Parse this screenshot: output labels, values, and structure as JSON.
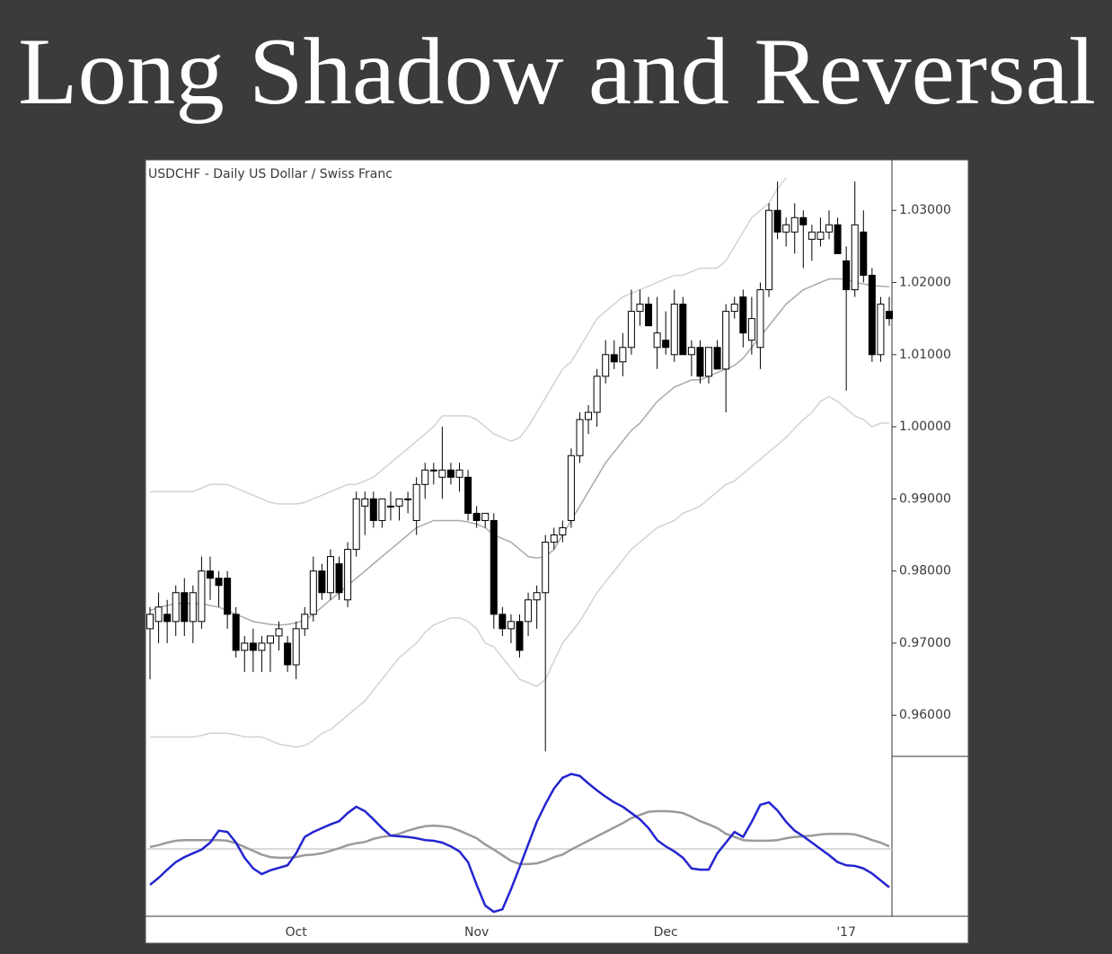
{
  "chart_data": [
    {
      "type": "candlestick",
      "title": "Long Shadow and Reversal",
      "subtitle": "USDCHF - Daily  US Dollar / Swiss Franc",
      "categories": [
        null,
        null,
        null,
        null,
        null,
        null,
        null,
        null,
        null,
        null,
        null,
        null,
        null,
        null,
        null,
        null,
        null,
        "Oct",
        null,
        null,
        null,
        null,
        null,
        null,
        null,
        null,
        null,
        null,
        null,
        null,
        null,
        null,
        null,
        null,
        null,
        null,
        null,
        null,
        "Nov",
        null,
        null,
        null,
        null,
        null,
        null,
        null,
        null,
        null,
        null,
        null,
        null,
        null,
        null,
        null,
        null,
        null,
        null,
        null,
        null,
        null,
        "Dec",
        null,
        null,
        null,
        null,
        null,
        null,
        null,
        null,
        null,
        null,
        null,
        null,
        null,
        null,
        null,
        null,
        null,
        null,
        null,
        null,
        "'17",
        null,
        null,
        null,
        null,
        null
      ],
      "open": [
        0.972,
        0.973,
        0.974,
        0.973,
        0.977,
        0.973,
        0.973,
        0.98,
        0.979,
        0.979,
        0.974,
        0.969,
        0.97,
        0.969,
        0.97,
        0.971,
        0.97,
        0.967,
        0.972,
        0.974,
        0.98,
        0.977,
        0.981,
        0.976,
        0.983,
        0.989,
        0.99,
        0.987,
        0.989,
        0.989,
        0.99,
        0.987,
        0.992,
        0.994,
        0.993,
        0.994,
        0.993,
        0.993,
        0.988,
        0.987,
        0.987,
        0.974,
        0.972,
        0.973,
        0.973,
        0.976,
        0.977,
        0.984,
        0.985,
        0.987,
        0.996,
        1.001,
        1.002,
        1.007,
        1.01,
        1.009,
        1.011,
        1.016,
        1.017,
        1.011,
        1.012,
        1.01,
        1.017,
        1.01,
        1.011,
        1.007,
        1.011,
        1.008,
        1.016,
        1.018,
        1.012,
        1.011,
        1.019,
        1.03,
        1.027,
        1.027,
        1.029,
        1.026,
        1.026,
        1.027,
        1.028,
        1.023,
        1.019,
        1.027,
        1.021,
        1.01,
        1.016
      ],
      "high": [
        0.975,
        0.977,
        0.976,
        0.978,
        0.979,
        0.978,
        0.982,
        0.982,
        0.98,
        0.98,
        0.975,
        0.971,
        0.972,
        0.971,
        0.971,
        0.973,
        0.971,
        0.973,
        0.975,
        0.982,
        0.981,
        0.983,
        0.982,
        0.984,
        0.991,
        0.991,
        0.991,
        0.99,
        0.991,
        0.99,
        0.991,
        0.993,
        0.995,
        0.995,
        1.0,
        0.995,
        0.995,
        0.994,
        0.989,
        0.988,
        0.988,
        0.975,
        0.974,
        0.974,
        0.977,
        0.978,
        0.985,
        0.986,
        0.987,
        0.997,
        1.002,
        1.003,
        1.008,
        1.012,
        1.012,
        1.013,
        1.019,
        1.019,
        1.018,
        1.018,
        1.016,
        1.019,
        1.018,
        1.012,
        1.012,
        1.011,
        1.012,
        1.017,
        1.018,
        1.019,
        1.018,
        1.02,
        1.031,
        1.034,
        1.029,
        1.031,
        1.03,
        1.028,
        1.029,
        1.03,
        1.029,
        1.025,
        1.034,
        1.03,
        1.022,
        1.018,
        1.018
      ],
      "low": [
        0.965,
        0.97,
        0.97,
        0.971,
        0.971,
        0.97,
        0.972,
        0.976,
        0.975,
        0.972,
        0.968,
        0.966,
        0.966,
        0.966,
        0.966,
        0.969,
        0.966,
        0.965,
        0.971,
        0.973,
        0.976,
        0.976,
        0.976,
        0.975,
        0.982,
        0.985,
        0.986,
        0.986,
        0.987,
        0.987,
        0.988,
        0.985,
        0.99,
        0.992,
        0.99,
        0.992,
        0.991,
        0.987,
        0.986,
        0.986,
        0.972,
        0.971,
        0.97,
        0.968,
        0.971,
        0.972,
        0.955,
        0.983,
        0.984,
        0.986,
        0.995,
        0.999,
        1.0,
        1.006,
        1.008,
        1.007,
        1.01,
        1.014,
        1.014,
        1.008,
        1.01,
        1.009,
        1.01,
        1.007,
        1.006,
        1.006,
        1.008,
        1.002,
        1.015,
        1.011,
        1.01,
        1.008,
        1.018,
        1.026,
        1.025,
        1.024,
        1.022,
        1.023,
        1.025,
        1.026,
        1.024,
        1.005,
        1.018,
        1.02,
        1.009,
        1.009,
        1.014
      ],
      "close": [
        0.974,
        0.975,
        0.973,
        0.977,
        0.973,
        0.977,
        0.98,
        0.979,
        0.978,
        0.974,
        0.969,
        0.97,
        0.969,
        0.97,
        0.971,
        0.972,
        0.967,
        0.972,
        0.974,
        0.98,
        0.977,
        0.982,
        0.977,
        0.983,
        0.99,
        0.99,
        0.987,
        0.99,
        0.989,
        0.99,
        0.99,
        0.992,
        0.994,
        0.994,
        0.994,
        0.993,
        0.994,
        0.988,
        0.987,
        0.988,
        0.974,
        0.972,
        0.973,
        0.969,
        0.976,
        0.977,
        0.984,
        0.985,
        0.986,
        0.996,
        1.001,
        1.002,
        1.007,
        1.01,
        1.009,
        1.011,
        1.016,
        1.017,
        1.014,
        1.013,
        1.011,
        1.017,
        1.01,
        1.011,
        1.007,
        1.011,
        1.008,
        1.016,
        1.017,
        1.013,
        1.015,
        1.019,
        1.03,
        1.027,
        1.028,
        1.029,
        1.028,
        1.027,
        1.027,
        1.028,
        1.024,
        1.019,
        1.028,
        1.021,
        1.01,
        1.017,
        1.015
      ],
      "up_color": "#ffffff",
      "down_color": "#000000",
      "overlays": [
        {
          "color": "#a9a9a9",
          "values": [
            0.9745,
            0.975,
            0.9752,
            0.9755,
            0.9755,
            0.9755,
            0.9755,
            0.9752,
            0.975,
            0.9745,
            0.974,
            0.9735,
            0.973,
            0.9728,
            0.9726,
            0.9725,
            0.9726,
            0.9728,
            0.9732,
            0.974,
            0.975,
            0.976,
            0.977,
            0.978,
            0.979,
            0.98,
            0.981,
            0.982,
            0.983,
            0.984,
            0.985,
            0.986,
            0.9865,
            0.987,
            0.987,
            0.987,
            0.987,
            0.9868,
            0.9865,
            0.986,
            0.985,
            0.9845,
            0.984,
            0.983,
            0.982,
            0.9818,
            0.982,
            0.983,
            0.985,
            0.987,
            0.989,
            0.991,
            0.993,
            0.995,
            0.9965,
            0.998,
            0.9995,
            1.0005,
            1.002,
            1.0035,
            1.0045,
            1.0055,
            1.006,
            1.0065,
            1.0065,
            1.007,
            1.0075,
            1.008,
            1.0085,
            1.0095,
            1.011,
            1.0125,
            1.014,
            1.0155,
            1.017,
            1.018,
            1.019,
            1.0195,
            1.02,
            1.0205,
            1.0205,
            1.0205,
            1.02,
            1.0198,
            1.0196,
            1.0195,
            1.0194
          ]
        },
        {
          "color": "#d2d2d2",
          "values": [
            0.991,
            0.991,
            0.991,
            0.991,
            0.991,
            0.991,
            0.9915,
            0.992,
            0.992,
            0.992,
            0.9915,
            0.991,
            0.9905,
            0.99,
            0.9895,
            0.9893,
            0.9893,
            0.9893,
            0.9895,
            0.99,
            0.9905,
            0.991,
            0.9915,
            0.992,
            0.992,
            0.9925,
            0.993,
            0.994,
            0.995,
            0.996,
            0.997,
            0.998,
            0.999,
            1.0,
            1.0015,
            1.0015,
            1.0015,
            1.0015,
            1.001,
            1.0,
            0.999,
            0.9985,
            0.998,
            0.9985,
            1.0,
            1.002,
            1.004,
            1.006,
            1.008,
            1.009,
            1.011,
            1.013,
            1.015,
            1.016,
            1.017,
            1.018,
            1.0185,
            1.019,
            1.0195,
            1.02,
            1.0205,
            1.021,
            1.021,
            1.0215,
            1.022,
            1.022,
            1.022,
            1.023,
            1.025,
            1.027,
            1.029,
            1.03,
            1.031,
            1.033,
            1.0345,
            null,
            null,
            null,
            null,
            null,
            null,
            null,
            null,
            null,
            null,
            null,
            null
          ]
        },
        {
          "color": "#d2d2d2",
          "values": [
            0.957,
            0.957,
            0.957,
            0.957,
            0.957,
            0.957,
            0.9572,
            0.9575,
            0.9575,
            0.9575,
            0.9573,
            0.957,
            0.957,
            0.957,
            0.9565,
            0.956,
            0.9558,
            0.9556,
            0.9558,
            0.9565,
            0.9575,
            0.958,
            0.959,
            0.96,
            0.961,
            0.962,
            0.9635,
            0.965,
            0.9665,
            0.968,
            0.969,
            0.97,
            0.9715,
            0.9725,
            0.973,
            0.9735,
            0.9735,
            0.973,
            0.972,
            0.97,
            0.9695,
            0.968,
            0.9665,
            0.965,
            0.9645,
            0.964,
            0.965,
            0.9675,
            0.97,
            0.9715,
            0.973,
            0.975,
            0.977,
            0.9785,
            0.98,
            0.9815,
            0.983,
            0.984,
            0.985,
            0.986,
            0.9865,
            0.987,
            0.988,
            0.9885,
            0.989,
            0.99,
            0.991,
            0.992,
            0.9925,
            0.9935,
            0.9945,
            0.9955,
            0.9965,
            0.9975,
            0.9985,
            0.9998,
            1.001,
            1.002,
            1.0035,
            1.0042,
            1.0035,
            1.0025,
            1.0015,
            1.001,
            1.0,
            1.0005,
            1.0005
          ]
        }
      ],
      "ylim": [
        0.9543,
        1.037
      ],
      "yticks": [
        {
          "value": 0.96,
          "label": "0.96000"
        },
        {
          "value": 0.97,
          "label": "0.97000"
        },
        {
          "value": 0.98,
          "label": "0.98000"
        },
        {
          "value": 0.99,
          "label": "0.99000"
        },
        {
          "value": 1.0,
          "label": "1.00000"
        },
        {
          "value": 1.01,
          "label": "1.01000"
        },
        {
          "value": 1.02,
          "label": "1.02000"
        },
        {
          "value": 1.03,
          "label": "1.03000"
        }
      ]
    },
    {
      "type": "line",
      "series": [
        {
          "color": "#2424d0",
          "values": [
            -0.57,
            -0.46,
            -0.33,
            -0.21,
            -0.13,
            -0.07,
            -0.01,
            0.1,
            0.29,
            0.27,
            0.1,
            -0.14,
            -0.31,
            -0.4,
            -0.34,
            -0.3,
            -0.26,
            -0.07,
            0.19,
            0.27,
            0.33,
            0.39,
            0.44,
            0.57,
            0.67,
            0.6,
            0.47,
            0.33,
            0.21,
            0.2,
            0.19,
            0.17,
            0.14,
            0.13,
            0.1,
            0.04,
            -0.04,
            -0.21,
            -0.57,
            -0.9,
            -1.0,
            -0.96,
            -0.64,
            -0.29,
            0.07,
            0.43,
            0.71,
            0.96,
            1.13,
            1.19,
            1.16,
            1.04,
            0.93,
            0.83,
            0.74,
            0.67,
            0.57,
            0.47,
            0.33,
            0.14,
            0.04,
            -0.04,
            -0.14,
            -0.31,
            -0.33,
            -0.33,
            -0.07,
            0.1,
            0.27,
            0.19,
            0.43,
            0.7,
            0.74,
            0.61,
            0.43,
            0.29,
            0.2,
            0.1,
            0.0,
            -0.1,
            -0.21,
            -0.26,
            -0.27,
            -0.31,
            -0.39,
            -0.5,
            -0.61
          ]
        },
        {
          "color": "#9a9a9a",
          "values": [
            0.03,
            0.06,
            0.1,
            0.13,
            0.14,
            0.14,
            0.14,
            0.14,
            0.14,
            0.13,
            0.09,
            0.03,
            -0.03,
            -0.09,
            -0.13,
            -0.14,
            -0.14,
            -0.13,
            -0.1,
            -0.09,
            -0.07,
            -0.03,
            0.01,
            0.06,
            0.09,
            0.11,
            0.16,
            0.19,
            0.21,
            0.24,
            0.29,
            0.33,
            0.36,
            0.37,
            0.36,
            0.34,
            0.29,
            0.23,
            0.17,
            0.07,
            -0.01,
            -0.1,
            -0.19,
            -0.24,
            -0.24,
            -0.23,
            -0.19,
            -0.13,
            -0.09,
            -0.01,
            0.06,
            0.13,
            0.2,
            0.27,
            0.34,
            0.41,
            0.49,
            0.54,
            0.59,
            0.6,
            0.6,
            0.59,
            0.57,
            0.51,
            0.44,
            0.39,
            0.33,
            0.24,
            0.19,
            0.14,
            0.13,
            0.13,
            0.13,
            0.14,
            0.17,
            0.19,
            0.2,
            0.21,
            0.23,
            0.24,
            0.24,
            0.24,
            0.23,
            0.19,
            0.14,
            0.1,
            0.04
          ]
        }
      ],
      "hline": 0,
      "ylim": [
        -1.07,
        1.47
      ]
    }
  ]
}
